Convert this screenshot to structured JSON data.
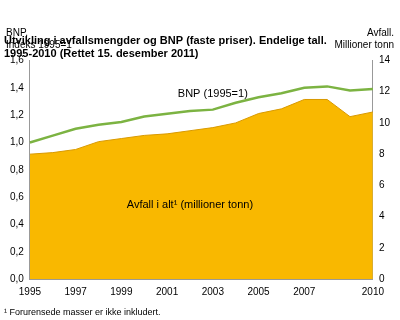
{
  "chart_data": {
    "type": "line",
    "title": [
      "Utvikling i avfallsmengder og BNP (faste priser). Endelige tall.",
      "1995-2010 (Rettet 15. desember 2011)"
    ],
    "footnote": "¹ Forurensede masser er ikke inkludert.",
    "ylabel": [
      "BNP.",
      "Indeks 1995=1"
    ],
    "y2label": [
      "Avfall.",
      "Millioner tonn"
    ],
    "categories": [
      "1995",
      null,
      "1997",
      null,
      "1999",
      null,
      "2001",
      null,
      "2003",
      null,
      "2005",
      null,
      "2007",
      null,
      null,
      "2010"
    ],
    "series": [
      {
        "name": "Avfall i alt¹ (millioner tonn)",
        "color": "#f9b800",
        "type": "area",
        "axis": "y2",
        "values": [
          8.0,
          8.1,
          8.3,
          8.8,
          9.0,
          9.2,
          9.3,
          9.5,
          9.7,
          10.0,
          10.6,
          10.9,
          11.5,
          11.5,
          10.4,
          10.7
        ]
      },
      {
        "name": "BNP (1995=1)",
        "color": "#7cb342",
        "type": "line",
        "values": [
          1.0,
          1.05,
          1.1,
          1.13,
          1.15,
          1.19,
          1.21,
          1.23,
          1.24,
          1.29,
          1.33,
          1.36,
          1.4,
          1.41,
          1.38,
          1.39
        ]
      }
    ],
    "ylim": [
      0,
      1.6
    ],
    "yticks": [
      {
        "value": 0,
        "label": "0,0"
      },
      {
        "value": 0.2,
        "label": "0,2"
      },
      {
        "value": 0.4,
        "label": "0,4"
      },
      {
        "value": 0.6,
        "label": "0,6"
      },
      {
        "value": 0.8,
        "label": "0,8"
      },
      {
        "value": 1.0,
        "label": "1,0"
      },
      {
        "value": 1.2,
        "label": "1,2"
      },
      {
        "value": 1.4,
        "label": "1,4"
      },
      {
        "value": 1.6,
        "label": "1,6"
      }
    ],
    "y2lim": [
      0,
      14
    ],
    "y2ticks": [
      0,
      2,
      4,
      6,
      8,
      10,
      12,
      14
    ],
    "grid": false
  }
}
